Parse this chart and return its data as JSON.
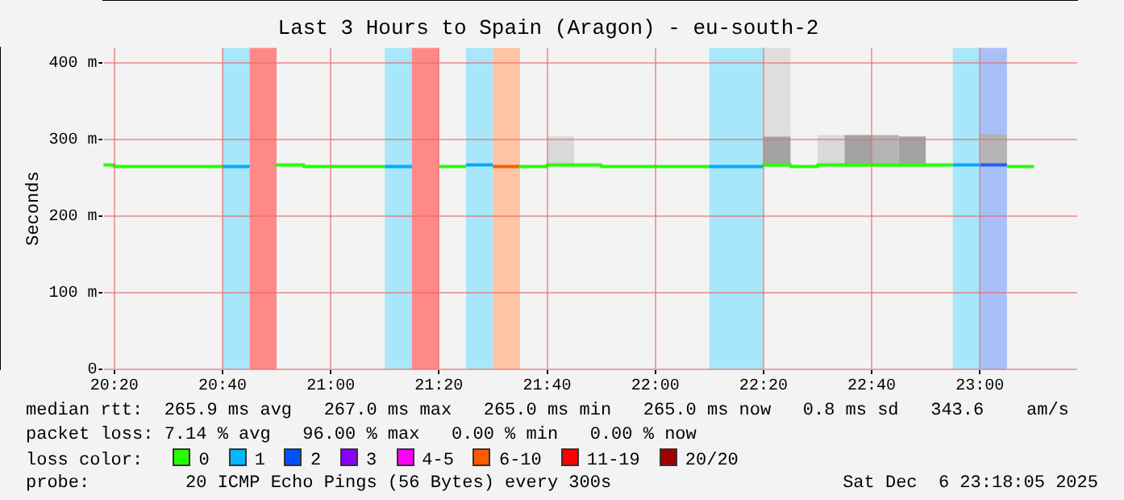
{
  "chart_data": {
    "type": "step",
    "title": "Last 3 Hours to Spain (Aragon) - eu-south-2",
    "ylabel": "Seconds",
    "xlim": [
      20.3,
      23.3
    ],
    "xticks": [
      {
        "value": 20.3333,
        "label": "20:20"
      },
      {
        "value": 20.6667,
        "label": "20:40"
      },
      {
        "value": 21.0,
        "label": "21:00"
      },
      {
        "value": 21.3333,
        "label": "21:20"
      },
      {
        "value": 21.6667,
        "label": "21:40"
      },
      {
        "value": 22.0,
        "label": "22:00"
      },
      {
        "value": 22.3333,
        "label": "22:20"
      },
      {
        "value": 22.6667,
        "label": "22:40"
      },
      {
        "value": 23.0,
        "label": "23:00"
      }
    ],
    "ylim": [
      0,
      420
    ],
    "yticks": [
      {
        "value": 0,
        "label": "0"
      },
      {
        "value": 100,
        "label": "100 m"
      },
      {
        "value": 200,
        "label": "200 m"
      },
      {
        "value": 300,
        "label": "300 m"
      },
      {
        "value": 400,
        "label": "400 m"
      }
    ],
    "grid": true,
    "legend": false,
    "series": [
      {
        "x": [
          20.3,
          20.3333,
          20.4167,
          20.6667,
          20.75,
          20.8333,
          20.9167,
          21.0,
          21.1667,
          21.25,
          21.3333,
          21.4167,
          21.5,
          21.5833,
          21.6667,
          21.8333,
          21.9167,
          22.1667,
          22.25,
          22.3333,
          22.4167,
          22.5,
          22.8333,
          22.9167,
          23.0,
          23.0833,
          23.1667
        ],
        "values": [
          265,
          267,
          265,
          265,
          null,
          265,
          267,
          265,
          265,
          null,
          265,
          265,
          null,
          267,
          265,
          267,
          265,
          265,
          null,
          265,
          267,
          265,
          267,
          267,
          null,
          265,
          265
        ],
        "color": "#26ff00"
      },
      {
        "x": [
          20.6667,
          20.75,
          20.8333,
          21.1667,
          21.25,
          21.3333,
          21.4167,
          21.5,
          21.5833,
          22.1667,
          22.3333,
          22.4167,
          22.9167,
          23.0
        ],
        "values": [
          265,
          265,
          null,
          265,
          265,
          null,
          267,
          267,
          null,
          265,
          265,
          null,
          267,
          267
        ],
        "color": "#00a8ff"
      },
      {
        "x": [
          21.5,
          21.5833
        ],
        "values": [
          265,
          265
        ],
        "color": "#ff5a00"
      },
      {
        "x": [
          23.0,
          23.0833
        ],
        "values": [
          267,
          267
        ],
        "color": "#1f5fff"
      },
      {
        "type": "bar",
        "x": [
          21.7083,
          22.375,
          22.5417,
          22.625,
          22.7083,
          22.7917,
          23.0417
        ],
        "base": [
          265,
          265,
          265,
          265,
          265,
          265,
          265
        ],
        "values": [
          39,
          39,
          41,
          41,
          41,
          39,
          42
        ],
        "colors": [
          "#d9d9d9",
          "#a2a2a2",
          "#d9d9d9",
          "#a2a2a2",
          "#b4b4b4",
          "#a2a2a2",
          "#b4b4b4"
        ]
      },
      {
        "type": "bar",
        "x": [
          22.375
        ],
        "base": [
          304
        ],
        "values": [
          116
        ],
        "colors": [
          "#dedede"
        ]
      }
    ],
    "bands": [
      {
        "axis": "x",
        "from": 20.6667,
        "to": 20.75,
        "color": "#a8e6fa"
      },
      {
        "axis": "x",
        "from": 20.75,
        "to": 20.8333,
        "color": "#ff8888"
      },
      {
        "axis": "x",
        "from": 21.1667,
        "to": 21.25,
        "color": "#a8e6fa"
      },
      {
        "axis": "x",
        "from": 21.25,
        "to": 21.3333,
        "color": "#ff8888"
      },
      {
        "axis": "x",
        "from": 21.4167,
        "to": 21.5,
        "color": "#a8e6fa"
      },
      {
        "axis": "x",
        "from": 21.5,
        "to": 21.5833,
        "color": "#ffc4a4"
      },
      {
        "axis": "x",
        "from": 22.1667,
        "to": 22.3333,
        "color": "#a8e6fa"
      },
      {
        "axis": "x",
        "from": 22.9167,
        "to": 23.0,
        "color": "#a8e6fa"
      },
      {
        "axis": "x",
        "from": 23.0,
        "to": 23.0833,
        "color": "#a8c0f8"
      }
    ],
    "annotations": [
      "median rtt:  265.9 ms avg   267.0 ms max   265.0 ms min   265.0 ms now   0.8 ms sd   343.6    am/s",
      "packet loss: 7.14 % avg   96.00 % max   0.00 % min   0.00 % now",
      "loss color:",
      "0",
      "1",
      "2",
      "3",
      "4-5",
      "6-10",
      "11-19",
      "20/20",
      "probe:",
      "20 ICMP Echo Pings (56 Bytes) every 300s",
      "Sat Dec  6 23:18:05 2025"
    ]
  }
}
